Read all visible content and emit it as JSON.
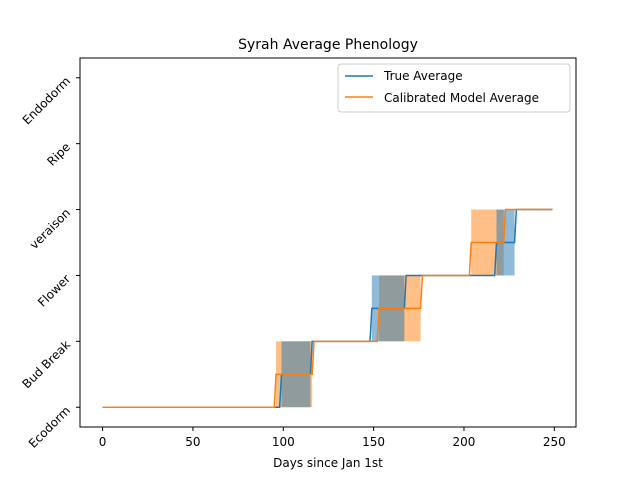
{
  "chart_data": {
    "type": "line",
    "title": "Syrah Average Phenology",
    "xlabel": "Days since Jan 1st",
    "ylabel": "",
    "xlim": [
      -12.5,
      262
    ],
    "ylim": [
      -0.3,
      5.3
    ],
    "xticks": [
      0,
      50,
      100,
      150,
      200,
      250
    ],
    "yticks": [
      {
        "value": 0,
        "label": "Ecodorm"
      },
      {
        "value": 1,
        "label": "Bud Break"
      },
      {
        "value": 2,
        "label": "Flower"
      },
      {
        "value": 3,
        "label": "veraison"
      },
      {
        "value": 4,
        "label": "Ripe"
      },
      {
        "value": 5,
        "label": "Endodorm"
      }
    ],
    "legend_position": "top-right",
    "series": [
      {
        "name": "True Average",
        "color": "#1f77b4",
        "step_x": [
          0,
          98,
          99,
          115,
          116,
          148,
          149,
          167,
          168,
          217,
          218,
          228,
          229,
          249
        ],
        "step_y": [
          0,
          0,
          0.5,
          0.5,
          1,
          1,
          1.5,
          1.5,
          2,
          2,
          2.5,
          2.5,
          3,
          3
        ],
        "bands": [
          {
            "x0": 99,
            "x1": 115,
            "y0": 0,
            "y1": 1
          },
          {
            "x0": 149,
            "x1": 167,
            "y0": 1,
            "y1": 2
          },
          {
            "x0": 218,
            "x1": 228,
            "y0": 2,
            "y1": 3
          }
        ]
      },
      {
        "name": "Calibrated Model Average",
        "color": "#ff7f0e",
        "step_x": [
          0,
          95,
          96,
          116,
          117,
          152,
          153,
          176,
          177,
          203,
          204,
          222,
          223,
          249
        ],
        "step_y": [
          0,
          0,
          0.5,
          0.5,
          1,
          1,
          1.5,
          1.5,
          2,
          2,
          2.5,
          2.5,
          3,
          3
        ],
        "bands": [
          {
            "x0": 96,
            "x1": 116,
            "y0": 0,
            "y1": 1
          },
          {
            "x0": 153,
            "x1": 176,
            "y0": 1,
            "y1": 2
          },
          {
            "x0": 204,
            "x1": 222,
            "y0": 2,
            "y1": 3
          }
        ]
      }
    ]
  }
}
